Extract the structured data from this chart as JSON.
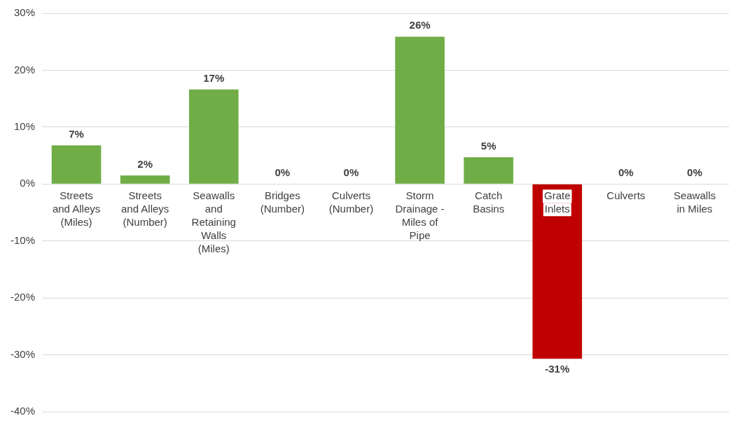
{
  "chart_data": {
    "type": "bar",
    "categories": [
      "Streets and Alleys (Miles)",
      "Streets and Alleys (Number)",
      "Seawalls and Retaining Walls (Miles)",
      "Bridges (Number)",
      "Culverts (Number)",
      "Storm Drainage - Miles of Pipe",
      "Catch Basins",
      "Grate Inlets",
      "Culverts",
      "Seawalls in Miles"
    ],
    "values": [
      6.8,
      1.5,
      16.6,
      0,
      0,
      25.9,
      4.7,
      -30.7,
      0,
      0
    ],
    "value_labels": [
      "7%",
      "2%",
      "17%",
      "0%",
      "0%",
      "26%",
      "5%",
      "-31%",
      "0%",
      "0%"
    ],
    "colors": [
      "#70ad47",
      "#70ad47",
      "#70ad47",
      "#70ad47",
      "#70ad47",
      "#70ad47",
      "#70ad47",
      "#c00000",
      "#70ad47",
      "#70ad47"
    ],
    "ylim": [
      -40,
      30
    ],
    "yticks": [
      {
        "value": -40,
        "label": "-40%"
      },
      {
        "value": -30,
        "label": "-30%"
      },
      {
        "value": -20,
        "label": "-20%"
      },
      {
        "value": -10,
        "label": "-10%"
      },
      {
        "value": 0,
        "label": "0%"
      },
      {
        "value": 10,
        "label": "10%"
      },
      {
        "value": 20,
        "label": "20%"
      },
      {
        "value": 30,
        "label": "30%"
      }
    ],
    "grid": "y",
    "legend": false
  }
}
